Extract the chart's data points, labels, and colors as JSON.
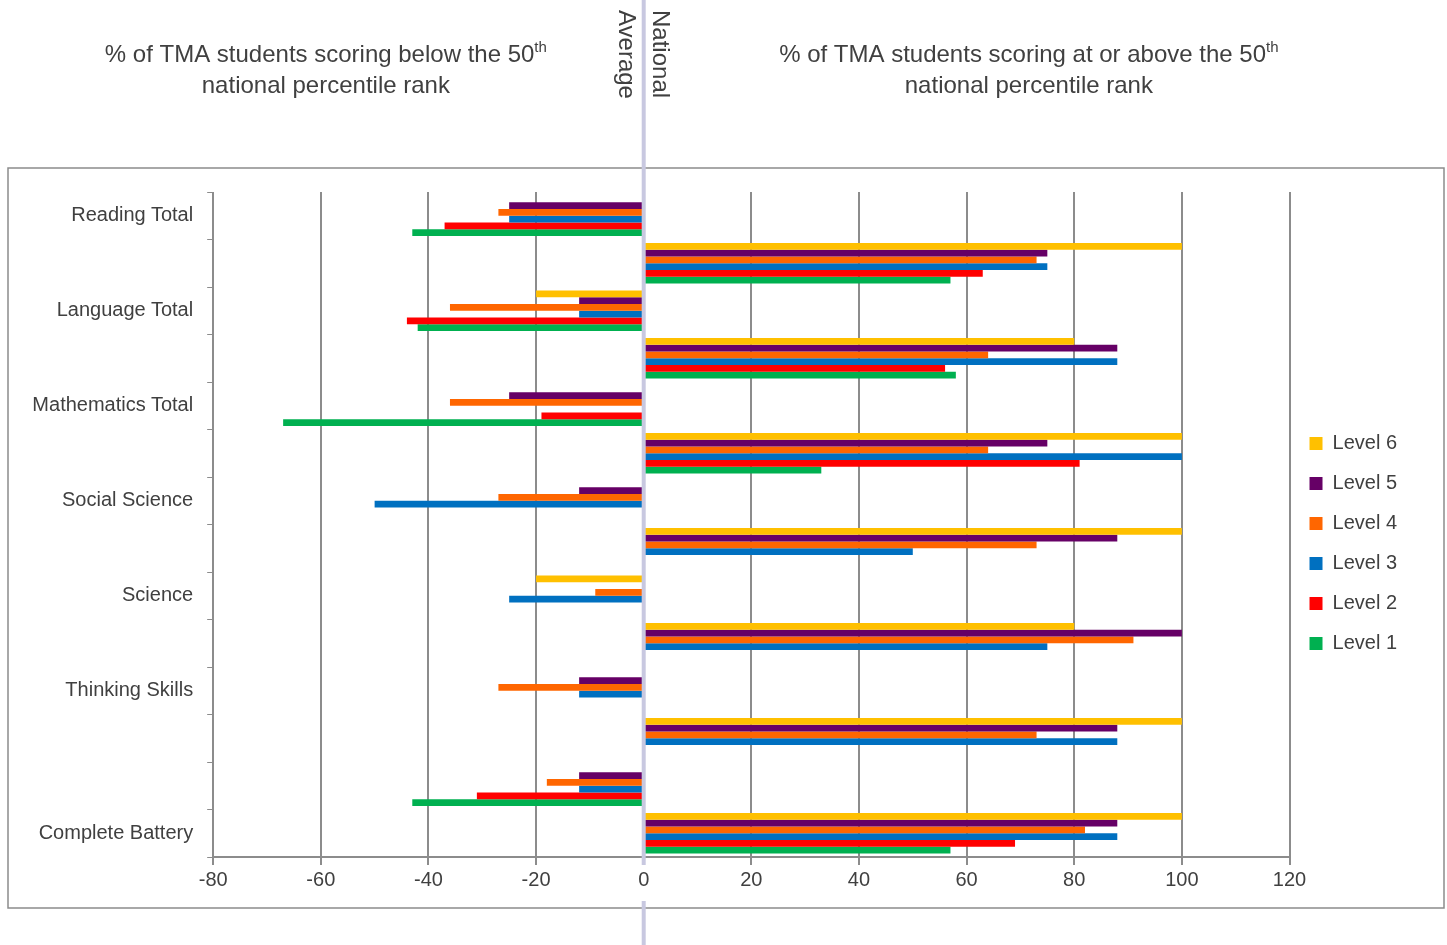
{
  "chart_data": {
    "type": "bar",
    "orientation": "horizontal",
    "annotations": [
      "% of TMA students scoring below the 50$^{th}$ national percentile rank",
      "% of TMA students scoring at or above the 50$^{th}$ national percentile rank"
    ],
    "categories": [
      "Reading Total",
      null,
      "Language Total",
      null,
      "Mathematics Total",
      null,
      "Social Science",
      null,
      "Science",
      null,
      "Thinking Skills",
      null,
      null,
      "Complete Battery"
    ],
    "series": [
      {
        "name": "Level 6",
        "color": "#ffc000",
        "values": [
          null,
          100,
          -20,
          80,
          null,
          100,
          null,
          100,
          -20,
          80,
          null,
          100,
          null,
          100
        ]
      },
      {
        "name": "Level 5",
        "color": "#660066",
        "values": [
          -25,
          75,
          -12,
          88,
          -25,
          75,
          -12,
          88,
          null,
          100,
          -12,
          88,
          -12,
          88
        ]
      },
      {
        "name": "Level 4",
        "color": "#ff6600",
        "values": [
          -27,
          73,
          -36,
          64,
          -36,
          64,
          -27,
          73,
          -9,
          91,
          -27,
          73,
          -18,
          82
        ]
      },
      {
        "name": "Level 3",
        "color": "#0070c0",
        "values": [
          -25,
          75,
          -12,
          88,
          null,
          100,
          -50,
          50,
          -25,
          75,
          -12,
          88,
          -12,
          88
        ]
      },
      {
        "name": "Level 2",
        "color": "#ff0000",
        "values": [
          -37,
          63,
          -44,
          56,
          -19,
          81,
          null,
          null,
          null,
          null,
          null,
          null,
          -31,
          69
        ]
      },
      {
        "name": "Level 1",
        "color": "#00b050",
        "values": [
          -43,
          57,
          -42,
          58,
          -67,
          33,
          null,
          null,
          null,
          null,
          null,
          null,
          -43,
          57
        ]
      }
    ],
    "xlim": [
      -80,
      120
    ],
    "xticks": [
      -80,
      -60,
      -40,
      -20,
      0,
      20,
      40,
      60,
      80,
      100,
      120
    ],
    "grid": "x",
    "legend": "right",
    "ref_lines": [
      {
        "axis": "x",
        "value": 0,
        "label": "National Average",
        "color": "#c8c8e0"
      }
    ]
  }
}
